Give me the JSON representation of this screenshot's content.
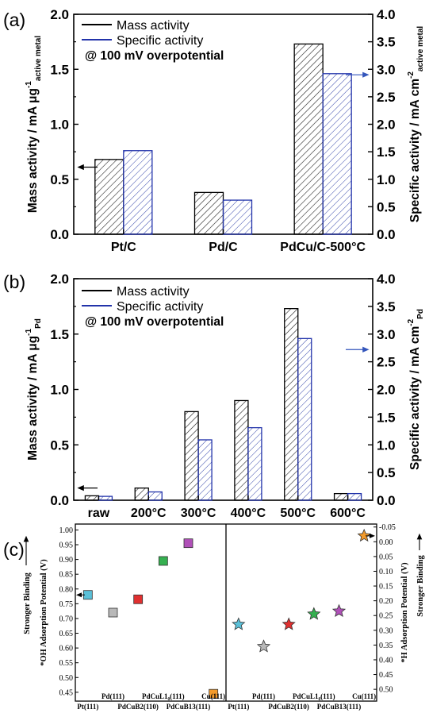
{
  "chart_data": [
    {
      "panel": "(a)",
      "type": "bar",
      "annotation": "@ 100 mV overpotential",
      "categories": [
        "Pt/C",
        "Pd/C",
        "PdCu/C-500°C"
      ],
      "ylabel_left": "Mass activity / mA μg",
      "ylabel_left_sup": "-1",
      "ylabel_left_sub": "active metal",
      "ylabel_right": "Specific activity / mA cm",
      "ylabel_right_sup": "-2",
      "ylabel_right_sub": "active metal",
      "ylim_left": [
        0,
        2.0
      ],
      "ylim_right": [
        0,
        4.0
      ],
      "yticks_left": [
        "0.0",
        "0.5",
        "1.0",
        "1.5",
        "2.0"
      ],
      "yticks_right": [
        "0.0",
        "0.5",
        "1.0",
        "1.5",
        "2.0",
        "2.5",
        "3.0",
        "3.5",
        "4.0"
      ],
      "series": [
        {
          "name": "Mass activity",
          "axis": "left",
          "color": "#000000",
          "values": [
            0.68,
            0.38,
            1.73
          ]
        },
        {
          "name": "Specific activity",
          "axis": "right",
          "color": "#2233aa",
          "values": [
            1.52,
            0.62,
            2.92
          ]
        }
      ],
      "arrows": [
        {
          "direction": "left",
          "axis": "left",
          "y": 0.61,
          "color": "#000000"
        },
        {
          "direction": "right",
          "axis": "right",
          "y": 2.9,
          "color": "#3355bb"
        }
      ]
    },
    {
      "panel": "(b)",
      "type": "bar",
      "annotation": "@ 100 mV overpotential",
      "categories": [
        "raw",
        "200°C",
        "300°C",
        "400°C",
        "500°C",
        "600°C"
      ],
      "ylabel_left": "Mass activity / mA μg",
      "ylabel_left_sup": "-1",
      "ylabel_left_sub": "Pd",
      "ylabel_right": "Specific activity / mA cm",
      "ylabel_right_sup": "-2",
      "ylabel_right_sub": "Pd",
      "ylim_left": [
        0,
        2.0
      ],
      "ylim_right": [
        0,
        4.0
      ],
      "yticks_left": [
        "0.0",
        "0.5",
        "1.0",
        "1.5",
        "2.0"
      ],
      "yticks_right": [
        "0.0",
        "0.5",
        "1.0",
        "1.5",
        "2.0",
        "2.5",
        "3.0",
        "3.5",
        "4.0"
      ],
      "series": [
        {
          "name": "Mass activity",
          "axis": "left",
          "color": "#000000",
          "values": [
            0.04,
            0.11,
            0.8,
            0.9,
            1.73,
            0.06
          ]
        },
        {
          "name": "Specific activity",
          "axis": "right",
          "color": "#2233aa",
          "values": [
            0.07,
            0.15,
            1.09,
            1.31,
            2.92,
            0.12
          ]
        }
      ],
      "arrows": [
        {
          "direction": "left",
          "axis": "left",
          "y": 0.11,
          "color": "#000000"
        },
        {
          "direction": "right",
          "axis": "right",
          "y": 2.72,
          "color": "#3355bb"
        }
      ]
    },
    {
      "panel": "(c)",
      "type": "scatter",
      "left": {
        "ylabel": "*OH Adsorption Potential (V)",
        "side_label": "Stronger Binding",
        "ylim": [
          1.02,
          0.42
        ],
        "yticks": [
          "0.45",
          "0.50",
          "0.55",
          "0.60",
          "0.65",
          "0.70",
          "0.75",
          "0.80",
          "0.85",
          "0.90",
          "0.95",
          "1.00"
        ],
        "marker": "square",
        "points": [
          {
            "label": "Pt(111)",
            "value": 0.78,
            "color": "#5bc0d8"
          },
          {
            "label": "Pd(111)",
            "value": 0.72,
            "color": "#b8b8b8"
          },
          {
            "label": "PdCuB2(110)",
            "value": 0.765,
            "color": "#e03030"
          },
          {
            "label": "PdCuL1₀(111)",
            "value": 0.895,
            "color": "#35b050"
          },
          {
            "label": "PdCuB13(111)",
            "value": 0.955,
            "color": "#b050b8"
          },
          {
            "label": "Cu(111)",
            "value": 0.445,
            "color": "#f39a2a"
          }
        ]
      },
      "right": {
        "ylabel": "*H Adsorption Potential (V)",
        "side_label": "Stronger Binding",
        "ylim": [
          -0.06,
          0.54
        ],
        "yticks": [
          "-0.05",
          "0.00",
          "0.05",
          "0.10",
          "0.15",
          "0.20",
          "0.25",
          "0.30",
          "0.35",
          "0.40",
          "0.45",
          "0.50"
        ],
        "marker": "star",
        "points": [
          {
            "label": "Pt(111)",
            "value": 0.28,
            "color": "#5bc0d8"
          },
          {
            "label": "Pd(111)",
            "value": 0.355,
            "color": "#b8b8b8"
          },
          {
            "label": "PdCuB2(110)",
            "value": 0.28,
            "color": "#e03030"
          },
          {
            "label": "PdCuL1₀(111)",
            "value": 0.245,
            "color": "#35b050"
          },
          {
            "label": "PdCuB13(111)",
            "value": 0.235,
            "color": "#b050b8"
          },
          {
            "label": "Cu(111)",
            "value": -0.02,
            "color": "#f39a2a"
          }
        ]
      }
    }
  ]
}
